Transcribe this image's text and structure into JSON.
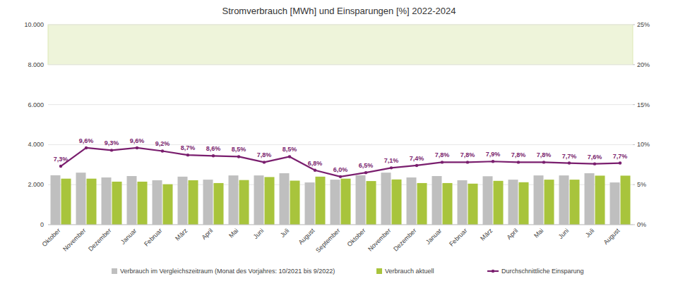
{
  "chart_data": {
    "type": "bar",
    "title": "Stromverbrauch [MWh] und Einsparungen [%] 2022-2024",
    "categories": [
      "Oktober",
      "November",
      "Dezember",
      "Januar",
      "Februar",
      "März",
      "April",
      "Mai",
      "Juni",
      "Juli",
      "August",
      "September",
      "Oktober",
      "November",
      "Dezember",
      "Januar",
      "Februar",
      "März",
      "April",
      "Mai",
      "Juni",
      "Juli",
      "August"
    ],
    "ylim": [
      0,
      10000
    ],
    "yticks": [
      0,
      {
        "value": 2000,
        "label": "2.000"
      },
      {
        "value": 4000,
        "label": "4.000"
      },
      {
        "value": 6000,
        "label": "6.000"
      },
      {
        "value": 8000,
        "label": "8.000"
      },
      {
        "value": 10000,
        "label": "10.000"
      }
    ],
    "y2lim": [
      0,
      25
    ],
    "y2ticks": [
      {
        "value": 0,
        "label": "0%"
      },
      {
        "value": 5,
        "label": "5%"
      },
      {
        "value": 10,
        "label": "10%"
      },
      {
        "value": 15,
        "label": "15%"
      },
      {
        "value": 20,
        "label": "20%"
      },
      {
        "value": 25,
        "label": "25%"
      }
    ],
    "grid": true,
    "legend": "bottom",
    "data_labels": true,
    "series": [
      {
        "name": "Verbrauch im Vergleichszeitraum (Monat des Vorjahres: 10/2021 bis 9/2022)",
        "type": "bar",
        "color": "#bfbfbf",
        "values": [
          2470,
          2600,
          2360,
          2430,
          2220,
          2400,
          2250,
          2460,
          2460,
          2570,
          2110,
          2250,
          2470,
          2600,
          2360,
          2430,
          2220,
          2420,
          2250,
          2460,
          2460,
          2570,
          2110
        ]
      },
      {
        "name": "Verbrauch aktuell",
        "type": "bar",
        "color": "#a8c43c",
        "values": [
          2300,
          2300,
          2150,
          2150,
          2020,
          2220,
          2080,
          2230,
          2380,
          2200,
          2400,
          2300,
          2180,
          2260,
          2080,
          2080,
          2050,
          2190,
          2120,
          2250,
          2250,
          2450,
          2450
        ]
      },
      {
        "name": "Durchschnittliche Einsparung",
        "type": "line",
        "axis": "y2",
        "color": "#7a1e6e",
        "marker": "circle",
        "values": [
          7.3,
          9.6,
          9.3,
          9.6,
          9.2,
          8.7,
          8.6,
          8.5,
          7.8,
          8.5,
          6.8,
          6.0,
          6.5,
          7.1,
          7.4,
          7.8,
          7.8,
          7.9,
          7.8,
          7.8,
          7.7,
          7.6,
          7.7
        ],
        "value_labels": [
          "7,3%",
          "9,6%",
          "9,3%",
          "9,6%",
          "9,2%",
          "8,7%",
          "8,6%",
          "8,5%",
          "7,8%",
          "8,5%",
          "6,8%",
          "6,0%",
          "6,5%",
          "7,1%",
          "7,4%",
          "7,8%",
          "7,8%",
          "7,9%",
          "7,8%",
          "7,8%",
          "7,7%",
          "7,6%",
          "7,7%"
        ]
      }
    ]
  }
}
